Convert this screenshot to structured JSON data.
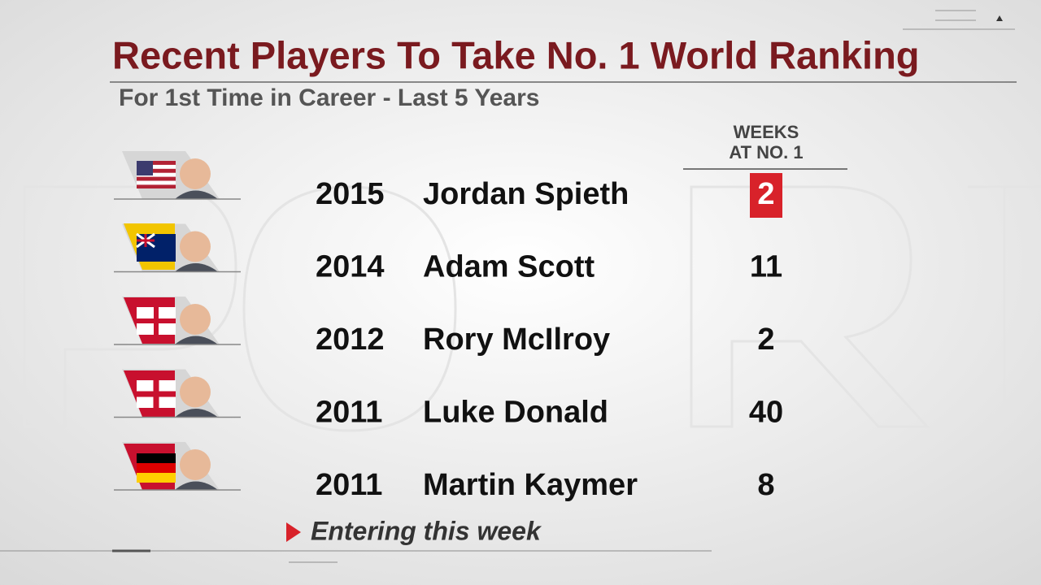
{
  "header": {
    "title": "Recent Players To Take No. 1 World Ranking",
    "subtitle": "For 1st Time in Career - Last 5 Years",
    "weeks_label": [
      "WEEKS",
      "AT NO. 1"
    ]
  },
  "table": {
    "rows": [
      {
        "year": "2015",
        "name": "Jordan Spieth",
        "weeks": "2"
      },
      {
        "year": "2014",
        "name": "Adam Scott",
        "weeks": "11"
      },
      {
        "year": "2012",
        "name": "Rory McIlroy",
        "weeks": "2"
      },
      {
        "year": "2011",
        "name": "Luke Donald",
        "weeks": "40"
      },
      {
        "year": "2011",
        "name": "Martin Kaymer",
        "weeks": "8"
      }
    ]
  },
  "footer": {
    "note": "Entering this week"
  }
}
